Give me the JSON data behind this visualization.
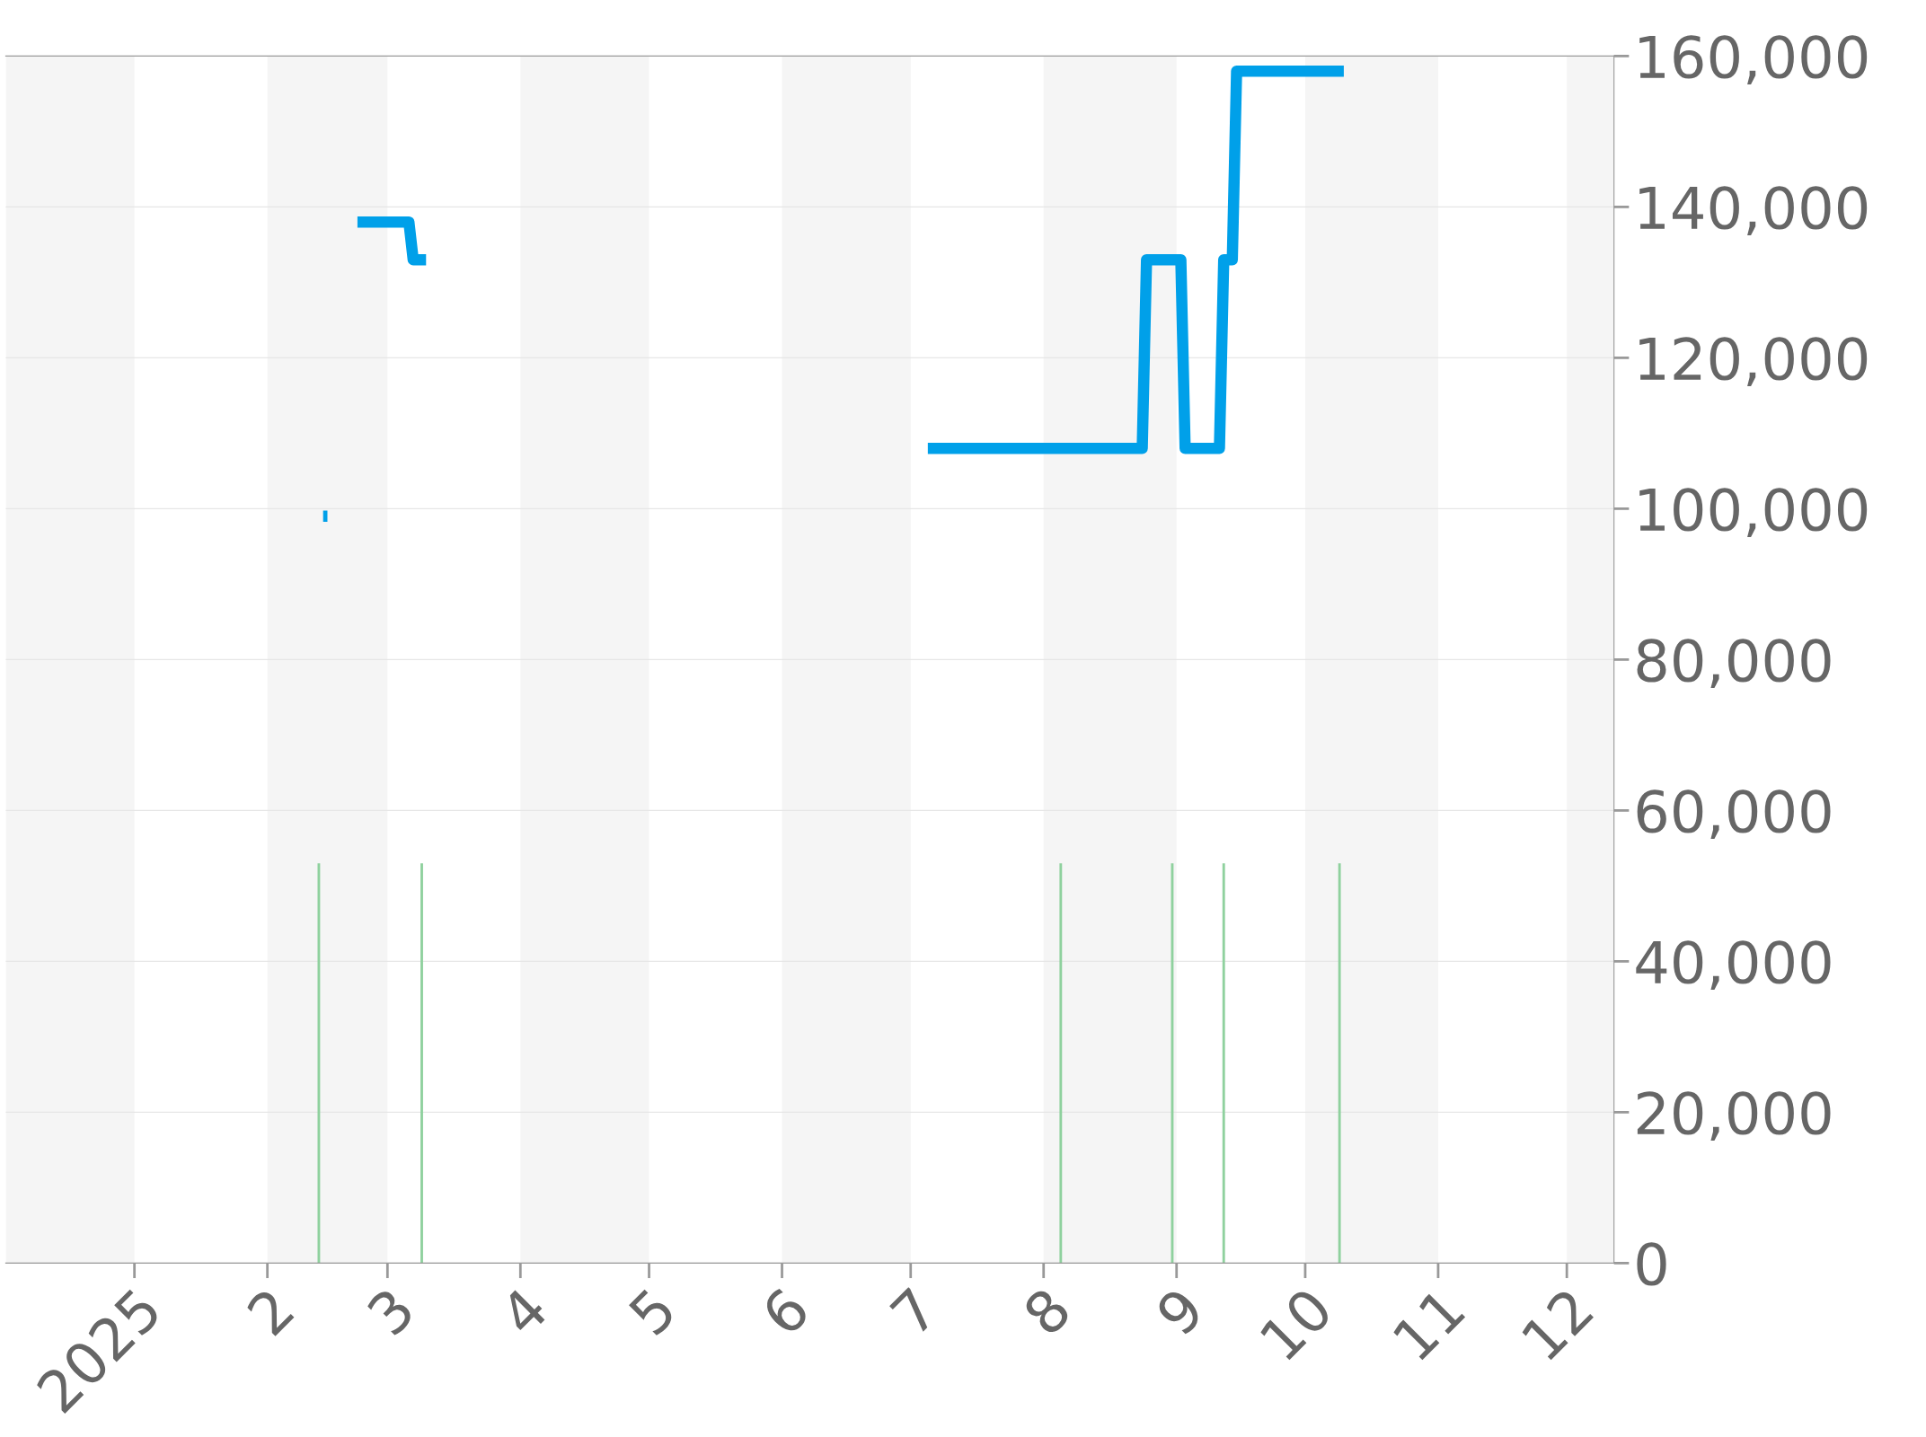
{
  "chart_data": {
    "type": "line",
    "xlim": [
      "2024-12-02",
      "2025-12-12"
    ],
    "xticks": [
      {
        "value": "2025-01-01",
        "label": "2025"
      },
      {
        "value": "2025-02-01",
        "label": "2"
      },
      {
        "value": "2025-03-01",
        "label": "3"
      },
      {
        "value": "2025-04-01",
        "label": "4"
      },
      {
        "value": "2025-05-01",
        "label": "5"
      },
      {
        "value": "2025-06-01",
        "label": "6"
      },
      {
        "value": "2025-07-01",
        "label": "7"
      },
      {
        "value": "2025-08-01",
        "label": "8"
      },
      {
        "value": "2025-09-01",
        "label": "9"
      },
      {
        "value": "2025-10-01",
        "label": "10"
      },
      {
        "value": "2025-11-01",
        "label": "11"
      },
      {
        "value": "2025-12-01",
        "label": "12"
      }
    ],
    "ylim": [
      0,
      160000
    ],
    "yticks": [
      {
        "value": 0,
        "label": "0"
      },
      {
        "value": 20000,
        "label": "20,000"
      },
      {
        "value": 40000,
        "label": "40,000"
      },
      {
        "value": 60000,
        "label": "60,000"
      },
      {
        "value": 80000,
        "label": "80,000"
      },
      {
        "value": 100000,
        "label": "100,000"
      },
      {
        "value": 120000,
        "label": "120,000"
      },
      {
        "value": 140000,
        "label": "140,000"
      },
      {
        "value": 160000,
        "label": "160,000"
      }
    ],
    "grid": "y",
    "legend": false,
    "line_style": "solid",
    "marker": "none",
    "bands": [
      {
        "axis": "x",
        "from": "2024-12-02",
        "to": "2025-01-01",
        "color": "#f5f5f5"
      },
      {
        "axis": "x",
        "from": "2025-02-01",
        "to": "2025-03-01",
        "color": "#f5f5f5"
      },
      {
        "axis": "x",
        "from": "2025-04-01",
        "to": "2025-05-01",
        "color": "#f5f5f5"
      },
      {
        "axis": "x",
        "from": "2025-06-01",
        "to": "2025-07-01",
        "color": "#f5f5f5"
      },
      {
        "axis": "x",
        "from": "2025-08-01",
        "to": "2025-09-01",
        "color": "#f5f5f5"
      },
      {
        "axis": "x",
        "from": "2025-10-01",
        "to": "2025-11-01",
        "color": "#f5f5f5"
      },
      {
        "axis": "x",
        "from": "2025-12-01",
        "to": "2025-12-12",
        "color": "#f5f5f5"
      }
    ],
    "series": [
      {
        "type": "bar",
        "color": "#8fd19e",
        "x": [
          "2025-02-13",
          "2025-03-09",
          "2025-08-05",
          "2025-08-31",
          "2025-09-12",
          "2025-10-09"
        ],
        "values": [
          53000,
          53000,
          53000,
          53000,
          53000,
          53000
        ]
      },
      {
        "color": "#00a0e9",
        "x": [
          "2025-02-14",
          "2025-02-15",
          "2025-02-18",
          "2025-02-22",
          "2025-03-06",
          "2025-03-07",
          "2025-03-10",
          "2025-04-01",
          "2025-07-05",
          "2025-08-24",
          "2025-08-25",
          "2025-09-02",
          "2025-09-03",
          "2025-09-11",
          "2025-09-12",
          "2025-09-14",
          "2025-09-15",
          "2025-10-10"
        ],
        "values": [
          99000,
          99000,
          null,
          138000,
          138000,
          133000,
          133000,
          null,
          108000,
          108000,
          133000,
          133000,
          108000,
          108000,
          133000,
          133000,
          158000,
          158000
        ]
      }
    ]
  }
}
